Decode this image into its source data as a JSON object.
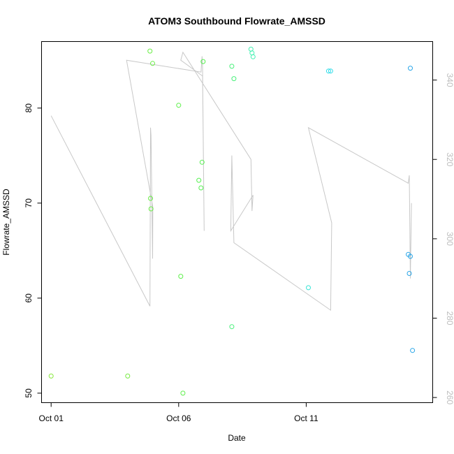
{
  "chart_data": {
    "type": "scatter",
    "title": "ATOM3 Southbound Flowrate_AMSSD",
    "xlabel": "Date",
    "ylabel": "Flowrate_AMSSD",
    "x_tick_labels": [
      "Oct 01",
      "Oct 06",
      "Oct 11"
    ],
    "y_ticks": [
      50,
      60,
      70,
      80
    ],
    "y_right_ticks": [
      260,
      280,
      300,
      320,
      340
    ],
    "xlim": [
      "2023-09-30T15:00",
      "2023-10-15T23:00"
    ],
    "ylim": [
      49,
      87
    ],
    "y_right_lim": [
      258.7,
      349.7
    ],
    "grid": false,
    "points": [
      {
        "x": "2023-10-01T00:00",
        "y": 51.8,
        "color": "#88e83c"
      },
      {
        "x": "2023-10-04T00:00",
        "y": 51.8,
        "color": "#77ea42"
      },
      {
        "x": "2023-10-04T21:00",
        "y": 86.0,
        "color": "#6aee46"
      },
      {
        "x": "2023-10-04T21:30",
        "y": 70.5,
        "color": "#6aee46"
      },
      {
        "x": "2023-10-04T22:00",
        "y": 69.4,
        "color": "#6aee46"
      },
      {
        "x": "2023-10-04T23:30",
        "y": 84.7,
        "color": "#6aee46"
      },
      {
        "x": "2023-10-06T00:00",
        "y": 80.3,
        "color": "#5ef04b"
      },
      {
        "x": "2023-10-06T02:00",
        "y": 62.3,
        "color": "#5ef04b"
      },
      {
        "x": "2023-10-06T04:00",
        "y": 50.0,
        "color": "#5ef04b"
      },
      {
        "x": "2023-10-06T19:00",
        "y": 72.4,
        "color": "#55f050"
      },
      {
        "x": "2023-10-06T21:00",
        "y": 71.6,
        "color": "#55f050"
      },
      {
        "x": "2023-10-06T22:00",
        "y": 74.3,
        "color": "#55f050"
      },
      {
        "x": "2023-10-06T23:00",
        "y": 84.9,
        "color": "#55f050"
      },
      {
        "x": "2023-10-08T02:00",
        "y": 57.0,
        "color": "#48f07a"
      },
      {
        "x": "2023-10-08T02:00",
        "y": 84.4,
        "color": "#48f07a"
      },
      {
        "x": "2023-10-08T04:00",
        "y": 83.1,
        "color": "#48f07a"
      },
      {
        "x": "2023-10-08T20:00",
        "y": 86.2,
        "color": "#3ff0b0"
      },
      {
        "x": "2023-10-08T21:00",
        "y": 85.8,
        "color": "#3ff0b0"
      },
      {
        "x": "2023-10-08T22:00",
        "y": 85.4,
        "color": "#3ff0b0"
      },
      {
        "x": "2023-10-11T02:00",
        "y": 61.1,
        "color": "#36e4d6"
      },
      {
        "x": "2023-10-11T21:00",
        "y": 83.9,
        "color": "#30dce8"
      },
      {
        "x": "2023-10-11T23:00",
        "y": 83.9,
        "color": "#30dce8"
      },
      {
        "x": "2023-10-15T00:00",
        "y": 64.6,
        "color": "#2aa6e8"
      },
      {
        "x": "2023-10-15T02:00",
        "y": 64.4,
        "color": "#2aa6e8"
      },
      {
        "x": "2023-10-15T01:00",
        "y": 62.6,
        "color": "#2aa6e8"
      },
      {
        "x": "2023-10-15T02:00",
        "y": 84.2,
        "color": "#2aa6e8"
      },
      {
        "x": "2023-10-15T04:00",
        "y": 54.5,
        "color": "#2aa6e8"
      }
    ],
    "line_right_axis": {
      "color": "#c8c8c8",
      "points": [
        {
          "x": "2023-10-01T00:00",
          "y": 331
        },
        {
          "x": "2023-10-04T21:00",
          "y": 283
        },
        {
          "x": "2023-10-04T21:30",
          "y": 328
        },
        {
          "x": "2023-10-04T22:00",
          "y": 326
        },
        {
          "x": "2023-10-04T23:30",
          "y": 295
        },
        {
          "x": "2023-10-04T23:40",
          "y": 308
        },
        {
          "x": "2023-10-03T23:00",
          "y": 345
        },
        {
          "x": "2023-10-06T21:00",
          "y": 342
        },
        {
          "x": "2023-10-06T22:00",
          "y": 346
        },
        {
          "x": "2023-10-06T22:30",
          "y": 343
        },
        {
          "x": "2023-10-07T00:00",
          "y": 302
        },
        {
          "x": "2023-10-06T22:30",
          "y": 341
        },
        {
          "x": "2023-10-06T02:00",
          "y": 345
        },
        {
          "x": "2023-10-06T04:00",
          "y": 347
        },
        {
          "x": "2023-10-08T20:00",
          "y": 320
        },
        {
          "x": "2023-10-08T21:00",
          "y": 307
        },
        {
          "x": "2023-10-08T22:00",
          "y": 311
        },
        {
          "x": "2023-10-08T01:00",
          "y": 302
        },
        {
          "x": "2023-10-08T02:00",
          "y": 321
        },
        {
          "x": "2023-10-08T04:00",
          "y": 299
        },
        {
          "x": "2023-10-11T23:00",
          "y": 282
        },
        {
          "x": "2023-10-12T00:00",
          "y": 304
        },
        {
          "x": "2023-10-11T02:00",
          "y": 328
        },
        {
          "x": "2023-10-15T00:00",
          "y": 314
        },
        {
          "x": "2023-10-15T01:00",
          "y": 316
        },
        {
          "x": "2023-10-15T02:00",
          "y": 290
        },
        {
          "x": "2023-10-15T03:00",
          "y": 309
        }
      ]
    }
  }
}
